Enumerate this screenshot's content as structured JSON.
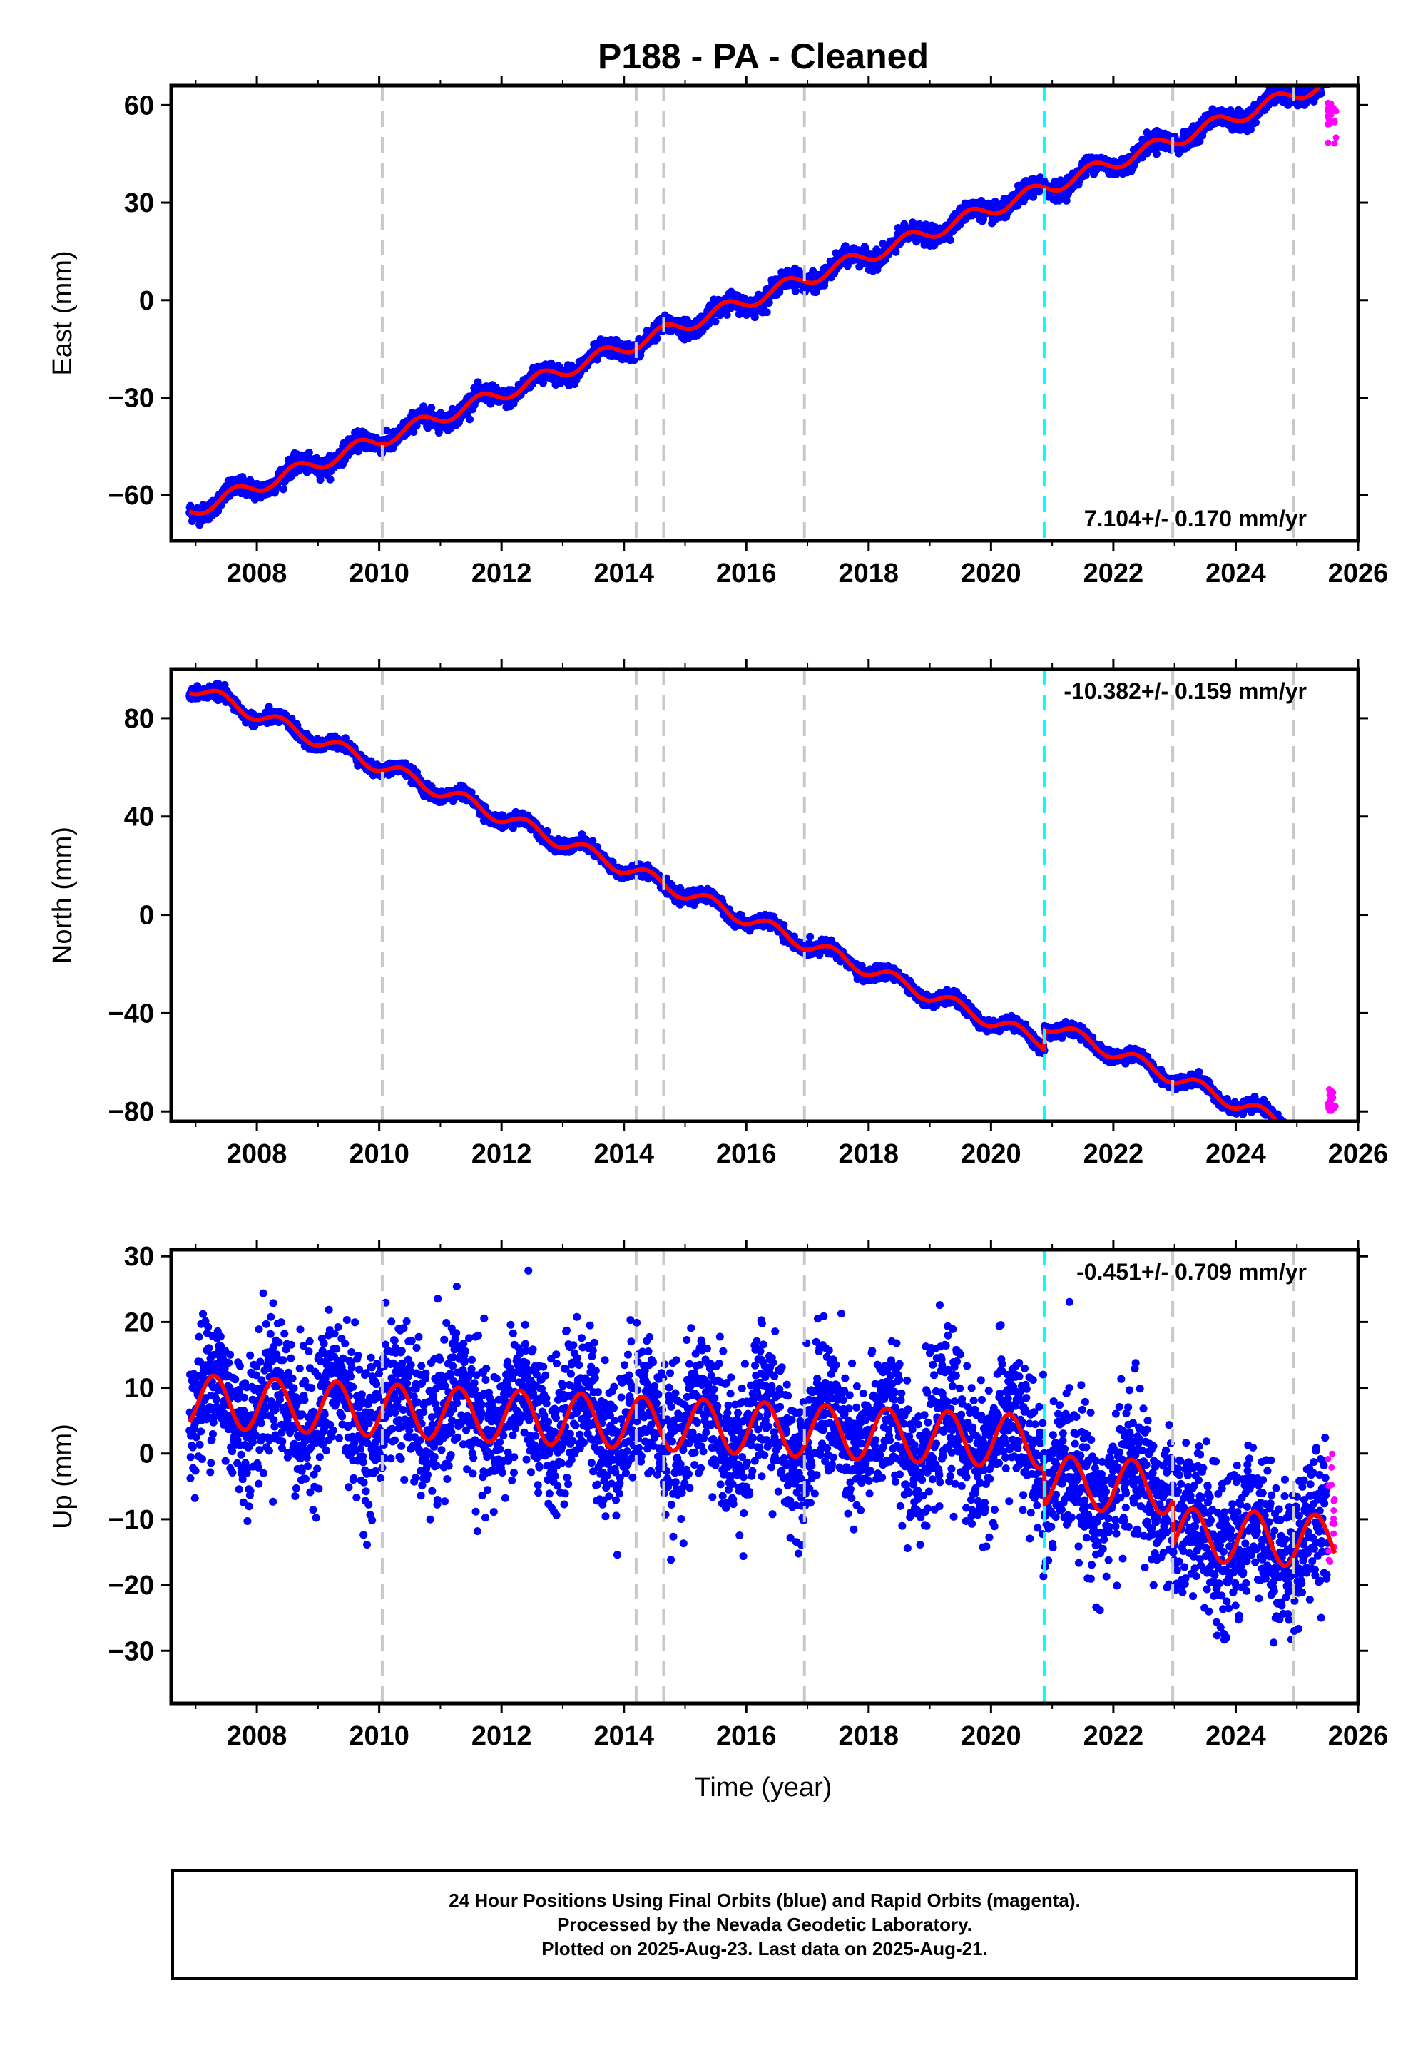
{
  "title": "P188  - PA - Cleaned",
  "x_axis_label": "Time (year)",
  "footer": {
    "line1": "24 Hour Positions Using Final Orbits (blue) and Rapid Orbits (magenta).",
    "line2": "Processed by the Nevada Geodetic Laboratory.",
    "line3": "Plotted on 2025-Aug-23. Last data on 2025-Aug-21."
  },
  "colors": {
    "final_orbits": "#0000ff",
    "rapid_orbits": "#ff00ff",
    "model_fit": "#ff0000",
    "event_lines": "#c8c8c8",
    "equipment_change_line": "#00ffff"
  },
  "chart_data": [
    {
      "type": "scatter",
      "ylabel": "East (mm)",
      "xlim": [
        2006.6,
        2026.0
      ],
      "ylim": [
        -74,
        66
      ],
      "xticks": [
        "2008",
        "2010",
        "2012",
        "2014",
        "2016",
        "2018",
        "2020",
        "2022",
        "2024",
        "2026"
      ],
      "yticks": [
        "60",
        "30",
        "0",
        "−30",
        "−60"
      ],
      "rate_label": "7.104+/- 0.170 mm/yr",
      "rate_position": "bottom-right",
      "grey_event_lines_year": [
        2010.05,
        2014.2,
        2014.65,
        2016.95,
        2022.97,
        2024.95
      ],
      "cyan_event_line_year": 2020.87,
      "model": {
        "start_year": 2006.9,
        "start_value": -65,
        "rate_mm_per_yr": 7.104,
        "annual_amplitude": 2.2,
        "phase_year": 0.4,
        "offset_at_2020.87": 0
      },
      "noise_mm": 1.3,
      "rapid_range": [
        48,
        62
      ],
      "series": [
        {
          "name": "Final Orbits (blue)",
          "x_range": [
            2006.9,
            2025.5
          ]
        },
        {
          "name": "Rapid Orbits (magenta)",
          "x_range": [
            2025.5,
            2025.64
          ]
        }
      ]
    },
    {
      "type": "scatter",
      "ylabel": "North (mm)",
      "xlim": [
        2006.6,
        2026.0
      ],
      "ylim": [
        -84,
        100
      ],
      "xticks": [
        "2008",
        "2010",
        "2012",
        "2014",
        "2016",
        "2018",
        "2020",
        "2022",
        "2024",
        "2026"
      ],
      "yticks": [
        "80",
        "40",
        "0",
        "−40",
        "−80"
      ],
      "rate_label": "-10.382+/- 0.159 mm/yr",
      "rate_position": "top-right",
      "grey_event_lines_year": [
        2010.05,
        2014.2,
        2014.65,
        2016.95,
        2022.97,
        2024.95
      ],
      "cyan_event_line_year": 2020.87,
      "model": {
        "start_year": 2006.9,
        "start_value": 93,
        "rate_mm_per_yr": -10.382,
        "annual_amplitude": 2.8,
        "phase_year": 0.15,
        "offset_at_2020.87": 8
      },
      "noise_mm": 1.2,
      "rapid_range": [
        -80,
        -71
      ],
      "series": [
        {
          "name": "Final Orbits (blue)",
          "x_range": [
            2006.9,
            2025.5
          ]
        },
        {
          "name": "Rapid Orbits (magenta)",
          "x_range": [
            2025.5,
            2025.64
          ]
        }
      ]
    },
    {
      "type": "scatter",
      "ylabel": "Up (mm)",
      "xlim": [
        2006.6,
        2026.0
      ],
      "ylim": [
        -38,
        31
      ],
      "xticks": [
        "2008",
        "2010",
        "2012",
        "2014",
        "2016",
        "2018",
        "2020",
        "2022",
        "2024",
        "2026"
      ],
      "yticks": [
        "30",
        "20",
        "10",
        "0",
        "−10",
        "−20",
        "−30"
      ],
      "rate_label": "-0.451+/- 0.709 mm/yr",
      "rate_position": "top-right",
      "grey_event_lines_year": [
        2010.05,
        2014.2,
        2014.65,
        2016.95,
        2022.97,
        2024.95
      ],
      "cyan_event_line_year": 2020.87,
      "model": {
        "start_year": 2006.9,
        "start_value": 8,
        "rate_mm_per_yr": -0.451,
        "annual_amplitude": 4.0,
        "phase_year": 0.05,
        "offset_at_2020.87": -6,
        "offset_at_2022.97": -7
      },
      "noise_mm": 5.5,
      "rapid_range": [
        -18,
        7
      ],
      "series": [
        {
          "name": "Final Orbits (blue)",
          "x_range": [
            2006.9,
            2025.5
          ]
        },
        {
          "name": "Rapid Orbits (magenta)",
          "x_range": [
            2025.5,
            2025.64
          ]
        }
      ]
    }
  ]
}
